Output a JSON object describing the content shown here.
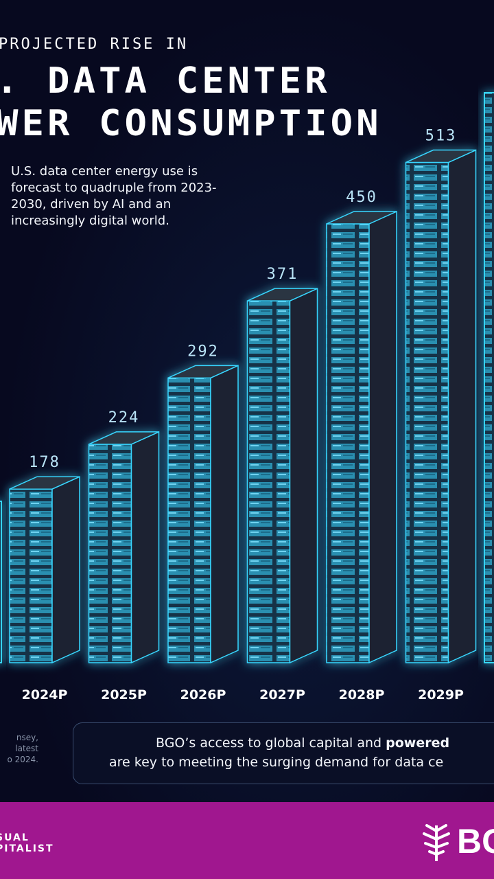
{
  "header": {
    "title_line1": "PROJECTED RISE IN",
    "title_line2": ". DATA CENTER",
    "title_line3": "WER CONSUMPTION",
    "description": "U.S. data center energy use is forecast to quadruple from 2023-2030, driven by AI and an increasingly digital world."
  },
  "chart_data": {
    "type": "bar",
    "categories": [
      "2024P",
      "2025P",
      "2026P",
      "2027P",
      "2028P",
      "2029P"
    ],
    "values": [
      178,
      224,
      292,
      371,
      450,
      513
    ],
    "ylim": [
      0,
      620
    ],
    "colors": {
      "rack": "#2a8fb0",
      "glow": "#37d6ff",
      "label": "#b9e4f7"
    }
  },
  "footer": {
    "source_line1": "nsey,",
    "source_line2": "latest",
    "source_line3": "o 2024.",
    "callout_line1_pre": "BGO’s access to global capital and ",
    "callout_line1_bold": "powered",
    "callout_line2": "are key to meeting the surging demand for data ce",
    "brand_left_line1": "SUAL",
    "brand_left_line2": "PITALIST",
    "brand_right": "BG"
  }
}
